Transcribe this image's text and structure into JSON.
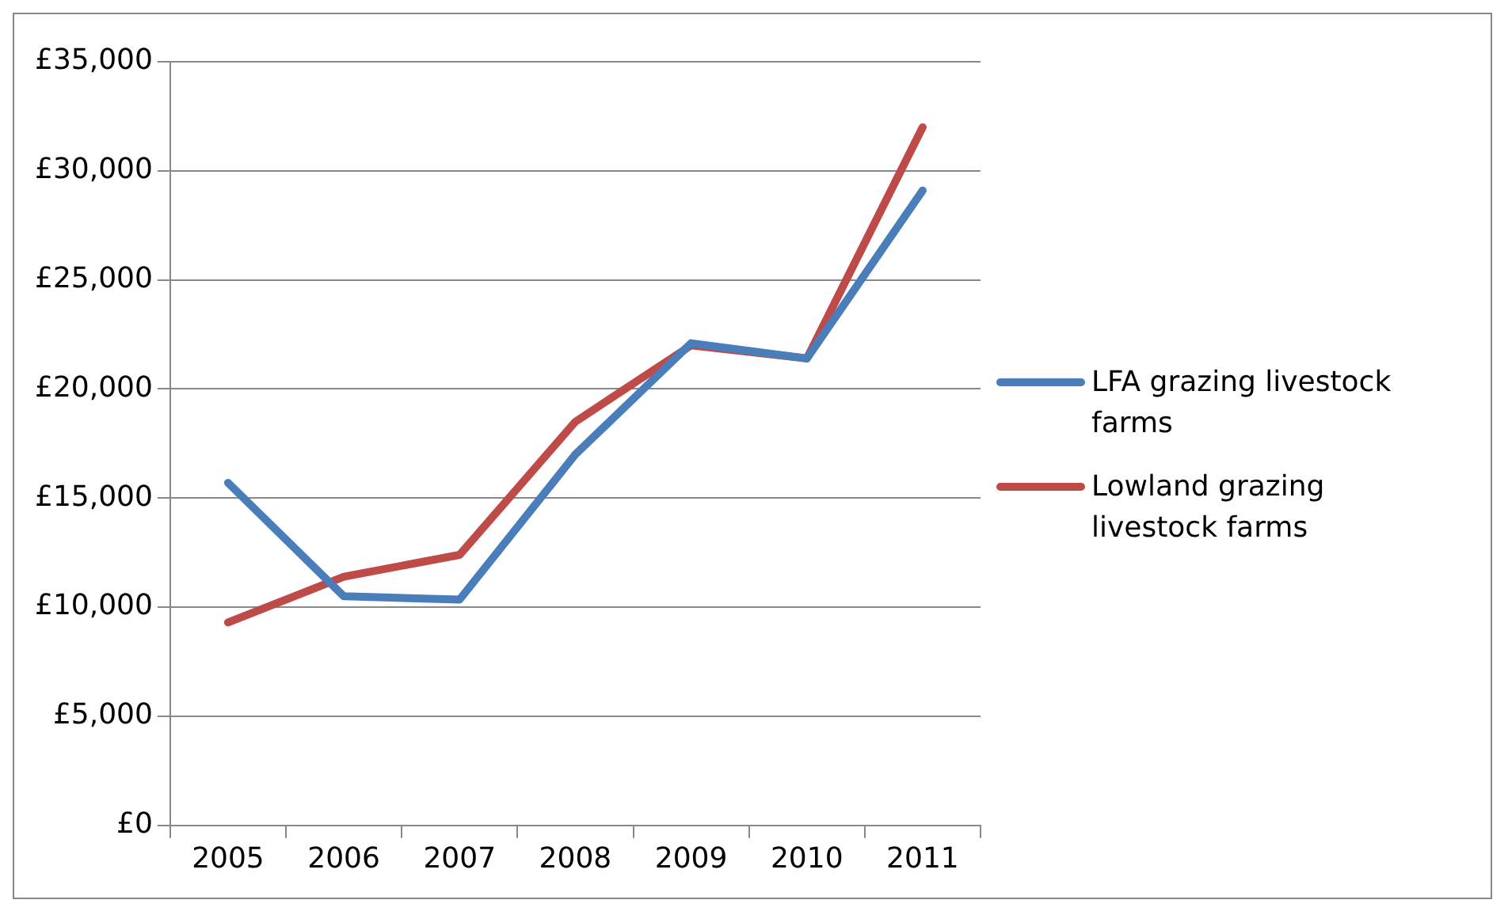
{
  "chart_data": {
    "type": "line",
    "categories": [
      "2005",
      "2006",
      "2007",
      "2008",
      "2009",
      "2010",
      "2011"
    ],
    "series": [
      {
        "name": "LFA grazing livestock farms",
        "color": "#4a7ebb",
        "values": [
          15700,
          10500,
          10350,
          17000,
          22100,
          21400,
          29100
        ]
      },
      {
        "name": "Lowland grazing livestock farms",
        "color": "#be4b48",
        "values": [
          9300,
          11400,
          12400,
          18500,
          22000,
          21400,
          32000
        ]
      }
    ],
    "ylim": [
      0,
      35000
    ],
    "yticks": [
      {
        "value": 0,
        "label": "£0"
      },
      {
        "value": 5000,
        "label": "£5,000"
      },
      {
        "value": 10000,
        "label": "£10,000"
      },
      {
        "value": 15000,
        "label": "£15,000"
      },
      {
        "value": 20000,
        "label": "£20,000"
      },
      {
        "value": 25000,
        "label": "£25,000"
      },
      {
        "value": 30000,
        "label": "£30,000"
      },
      {
        "value": 35000,
        "label": "£35,000"
      }
    ],
    "grid": "y",
    "legend": "right",
    "marker": "none",
    "line_style": "solid"
  }
}
